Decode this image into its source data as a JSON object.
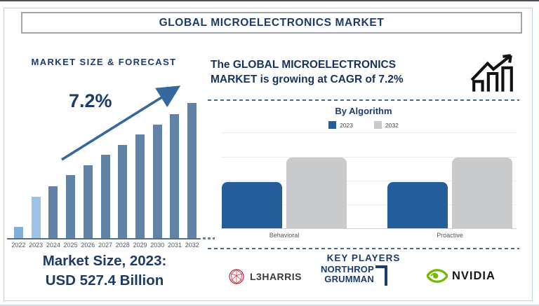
{
  "header": {
    "title": "GLOBAL MICROELECTRONICS MARKET"
  },
  "left_panel": {
    "section_title": "MARKET SIZE & FORECAST",
    "growth_label": "7.2%",
    "market_size_line1": "Market Size, 2023:",
    "market_size_line2": "USD 527.4 Billion"
  },
  "right_panel": {
    "headline_line1": "The GLOBAL MICROELECTRONICS",
    "headline_line2": "MARKET is growing at CAGR of 7.2%",
    "section_title": "By Algorithm",
    "legend": [
      {
        "label": "2023",
        "color": "#235E9A"
      },
      {
        "label": "2032",
        "color": "#C8CACC"
      }
    ],
    "key_players_title": "KEY PLAYERS",
    "players": {
      "l3harris": "L3HARRIS",
      "northrop_line1": "NORTHROP",
      "northrop_line2": "GRUMMAN",
      "nvidia": "NVIDIA"
    }
  },
  "icons": {
    "growth_trend_arrow": "diagonal up-right arrow over bars",
    "bar_chart_rising_icon": "outlined bars with zigzag up arrow",
    "l3harris_globe_icon_color": "#C42033",
    "nvidia_eye_icon_color": "#76B900"
  },
  "chart_data": [
    {
      "type": "bar",
      "title": "MARKET SIZE & FORECAST",
      "categories": [
        "2022",
        "2023",
        "2024",
        "2025",
        "2026",
        "2027",
        "2028",
        "2029",
        "2030",
        "2031",
        "2032"
      ],
      "values_relative_pct": [
        8.3,
        30.6,
        38.3,
        46.6,
        53.9,
        61.7,
        68.9,
        76.7,
        83.9,
        91.7,
        100
      ],
      "bar_colors_hex": [
        "#84AED8",
        "#9DC3E6",
        "#6083A6",
        "#6083A6",
        "#6083A6",
        "#6083A6",
        "#6083A6",
        "#6083A6",
        "#6083A6",
        "#6083A6",
        "#6083A6"
      ],
      "value_axis": "none shown (stylized growth bars, relative heights)",
      "annotations": {
        "cagr": "7.2%",
        "market_size_2023": "USD 527.4 Billion"
      },
      "legend_position": "none",
      "grid": false
    },
    {
      "type": "bar",
      "title": "By Algorithm",
      "categories": [
        "Behavioral",
        "Proactive"
      ],
      "series": [
        {
          "name": "2023",
          "color": "#235E9A",
          "values_relative_pct": [
            48,
            48
          ]
        },
        {
          "name": "2032",
          "color": "#C8CACC",
          "values_relative_pct": [
            73,
            73
          ]
        }
      ],
      "value_axis": "none shown (relative heights, % of plot area)",
      "legend_position": "top",
      "grid": true
    }
  ]
}
